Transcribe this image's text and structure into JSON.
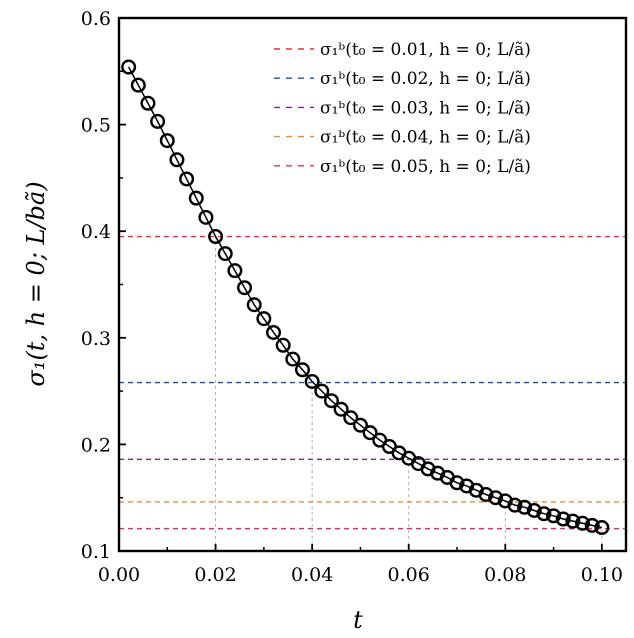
{
  "chart_data": {
    "type": "line",
    "xlabel": "t",
    "ylabel": "σ₁(t, h = 0; L/bã)",
    "xlim": [
      0,
      0.105
    ],
    "ylim": [
      0.1,
      0.6
    ],
    "xticks": [
      "0.00",
      "0.02",
      "0.04",
      "0.06",
      "0.08",
      "0.10"
    ],
    "xtick_values": [
      0,
      0.02,
      0.04,
      0.06,
      0.08,
      0.1
    ],
    "yticks": [
      "0.1",
      "0.2",
      "0.3",
      "0.4",
      "0.5",
      "0.6"
    ],
    "ytick_values": [
      0.1,
      0.2,
      0.3,
      0.4,
      0.5,
      0.6
    ],
    "grid": false,
    "legend_position": "top-right",
    "series": [
      {
        "style": "black line with open circle markers",
        "color": "#000000",
        "x": [
          0.002,
          0.004,
          0.006,
          0.008,
          0.01,
          0.012,
          0.014,
          0.016,
          0.018,
          0.02,
          0.022,
          0.024,
          0.026,
          0.028,
          0.03,
          0.032,
          0.034,
          0.036,
          0.038,
          0.04,
          0.042,
          0.044,
          0.046,
          0.048,
          0.05,
          0.052,
          0.054,
          0.056,
          0.058,
          0.06,
          0.062,
          0.064,
          0.066,
          0.068,
          0.07,
          0.072,
          0.074,
          0.076,
          0.078,
          0.08,
          0.082,
          0.084,
          0.086,
          0.088,
          0.09,
          0.092,
          0.094,
          0.096,
          0.098,
          0.1
        ],
        "y": [
          0.554,
          0.537,
          0.52,
          0.503,
          0.485,
          0.467,
          0.449,
          0.431,
          0.413,
          0.395,
          0.379,
          0.363,
          0.347,
          0.331,
          0.318,
          0.305,
          0.293,
          0.28,
          0.27,
          0.259,
          0.25,
          0.241,
          0.233,
          0.225,
          0.218,
          0.211,
          0.204,
          0.198,
          0.192,
          0.187,
          0.182,
          0.177,
          0.173,
          0.169,
          0.164,
          0.161,
          0.157,
          0.153,
          0.15,
          0.147,
          0.143,
          0.141,
          0.138,
          0.135,
          0.133,
          0.13,
          0.128,
          0.126,
          0.124,
          0.122
        ]
      }
    ],
    "reference_lines": [
      {
        "name": "σ₁ᵇ(t₀ = 0.01, h = 0; L/ã)",
        "y": 0.395,
        "t_marker": 0.02,
        "color": "#e8302e"
      },
      {
        "name": "σ₁ᵇ(t₀ = 0.02, h = 0; L/ã)",
        "y": 0.258,
        "t_marker": 0.04,
        "color": "#1f4ea6"
      },
      {
        "name": "σ₁ᵇ(t₀ = 0.03, h = 0; L/ã)",
        "y": 0.186,
        "t_marker": 0.06,
        "color": "#7a2884"
      },
      {
        "name": "σ₁ᵇ(t₀ = 0.04, h = 0; L/ã)",
        "y": 0.146,
        "t_marker": 0.08,
        "color": "#f2892a"
      },
      {
        "name": "σ₁ᵇ(t₀ = 0.05, h = 0; L/ã)",
        "y": 0.121,
        "t_marker": 0.1,
        "color": "#e6287a"
      }
    ]
  }
}
